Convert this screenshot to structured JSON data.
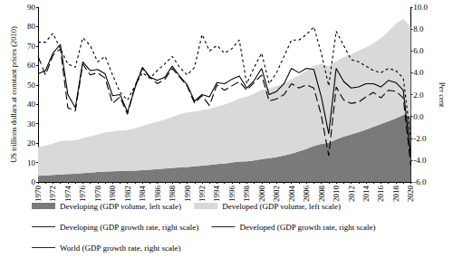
{
  "chart_data": {
    "type": "line",
    "stacked": true,
    "grid": false,
    "legend": "bottom",
    "y_label": "US trillions dollars at constant prices (2010)",
    "y2_label": "Per cent",
    "categories": [
      "1970",
      null,
      "1972",
      null,
      "1974",
      null,
      "1976",
      null,
      "1978",
      null,
      "1980",
      null,
      "1982",
      null,
      "1984",
      null,
      "1986",
      null,
      "1988",
      null,
      "1990",
      null,
      "1992",
      null,
      "1994",
      null,
      "1996",
      null,
      "1998",
      null,
      "2000",
      null,
      "2002",
      null,
      "2004",
      null,
      "2006",
      null,
      "2008",
      null,
      "2010",
      null,
      "2012",
      null,
      "2014",
      null,
      "2016",
      null,
      "2018",
      null,
      "2020"
    ],
    "ylim": [
      0,
      90
    ],
    "yticks": [
      0,
      10,
      20,
      30,
      40,
      50,
      60,
      70,
      80,
      90
    ],
    "y2lim": [
      -6,
      10
    ],
    "y2ticks": [
      {
        "value": -6,
        "label": "-6.0"
      },
      {
        "value": -4,
        "label": "-4.0"
      },
      {
        "value": -2,
        "label": "-2.0"
      },
      {
        "value": 0,
        "label": "0.0"
      },
      {
        "value": 2,
        "label": "2.0"
      },
      {
        "value": 4,
        "label": "4.0"
      },
      {
        "value": 6,
        "label": "6.0"
      },
      {
        "value": 8,
        "label": "8.0"
      },
      {
        "value": 10,
        "label": "10.0"
      }
    ],
    "series": [
      {
        "name": "Developing (GDP volume, left scale)",
        "type": "area",
        "color": "#7a7a7a",
        "values": [
          3.2,
          3.4,
          3.6,
          3.9,
          4.1,
          4.2,
          4.5,
          4.8,
          5.1,
          5.4,
          5.5,
          5.6,
          5.7,
          5.8,
          6.1,
          6.3,
          6.6,
          6.9,
          7.2,
          7.5,
          7.7,
          8.0,
          8.4,
          8.8,
          9.2,
          9.5,
          10.0,
          10.5,
          10.6,
          11.1,
          11.8,
          12.2,
          12.8,
          13.6,
          14.6,
          15.7,
          17.0,
          18.5,
          19.6,
          20.2,
          21.9,
          23.3,
          24.5,
          25.7,
          26.9,
          28.5,
          29.8,
          31.2,
          32.8,
          34.5,
          33.8
        ]
      },
      {
        "name": "Developed (GDP volume, left scale)",
        "type": "area",
        "color": "#d9d9d9",
        "values": [
          14.8,
          15.4,
          16.2,
          17.1,
          17.2,
          17.3,
          18.1,
          18.7,
          19.4,
          20.1,
          20.5,
          20.9,
          21.1,
          21.8,
          22.7,
          23.7,
          24.4,
          25.2,
          26.3,
          27.3,
          28.1,
          28.3,
          28.6,
          28.8,
          29.6,
          30.4,
          31.3,
          32.4,
          33.3,
          34.4,
          35.7,
          36.1,
          36.5,
          37.1,
          38.3,
          39.2,
          40.3,
          41.3,
          41.1,
          39.5,
          40.3,
          40.9,
          41.3,
          41.9,
          42.5,
          43.0,
          44.2,
          46.3,
          48.7,
          49.5,
          46.2
        ]
      },
      {
        "name": "Developing (GDP growth rate, right scale)",
        "type": "line",
        "axis": "y2",
        "color": "#000000",
        "line_style": "short_dashed",
        "values": [
          6.8,
          6.8,
          7.6,
          6.2,
          4.8,
          4.5,
          7.2,
          6.5,
          5.0,
          5.5,
          3.8,
          2.2,
          1.5,
          2.8,
          4.0,
          3.5,
          4.2,
          4.8,
          5.5,
          4.5,
          3.8,
          4.5,
          7.5,
          6.0,
          6.5,
          5.8,
          6.2,
          7.0,
          3.0,
          4.5,
          5.8,
          3.0,
          4.0,
          5.5,
          7.0,
          7.0,
          7.5,
          8.2,
          5.8,
          2.8,
          7.8,
          6.5,
          5.2,
          5.0,
          4.6,
          4.2,
          4.0,
          4.4,
          4.2,
          3.5,
          -2.0
        ]
      },
      {
        "name": "Developed (GDP growth rate, right scale)",
        "type": "line",
        "axis": "y2",
        "color": "#000000",
        "line_style": "dashed",
        "values": [
          5.5,
          3.8,
          5.6,
          6.2,
          0.8,
          0.5,
          4.8,
          3.8,
          4.0,
          3.5,
          1.2,
          1.8,
          0.2,
          2.8,
          4.4,
          3.6,
          3.0,
          3.4,
          4.4,
          3.6,
          2.8,
          1.2,
          1.9,
          1.0,
          2.9,
          2.4,
          2.8,
          3.2,
          2.4,
          3.1,
          3.8,
          1.4,
          1.6,
          2.0,
          3.0,
          2.6,
          2.9,
          2.6,
          0.1,
          -3.6,
          2.7,
          1.5,
          1.2,
          1.3,
          1.8,
          2.2,
          1.7,
          2.4,
          2.3,
          1.7,
          -4.5
        ]
      },
      {
        "name": "World (GDP growth rate, right scale)",
        "type": "line",
        "axis": "y2",
        "color": "#000000",
        "line_style": "solid",
        "values": [
          3.9,
          4.2,
          5.8,
          6.6,
          2.0,
          0.8,
          5.0,
          4.2,
          4.3,
          3.9,
          1.9,
          2.0,
          0.4,
          2.6,
          4.5,
          3.6,
          3.3,
          3.6,
          4.6,
          3.7,
          2.9,
          1.4,
          2.0,
          1.8,
          3.1,
          3.0,
          3.4,
          3.7,
          2.6,
          3.3,
          4.4,
          2.0,
          2.3,
          3.0,
          4.4,
          4.0,
          4.4,
          4.3,
          1.8,
          -1.6,
          4.4,
          3.2,
          2.6,
          2.7,
          3.0,
          3.0,
          2.7,
          3.3,
          3.1,
          2.4,
          -3.6
        ]
      }
    ]
  }
}
